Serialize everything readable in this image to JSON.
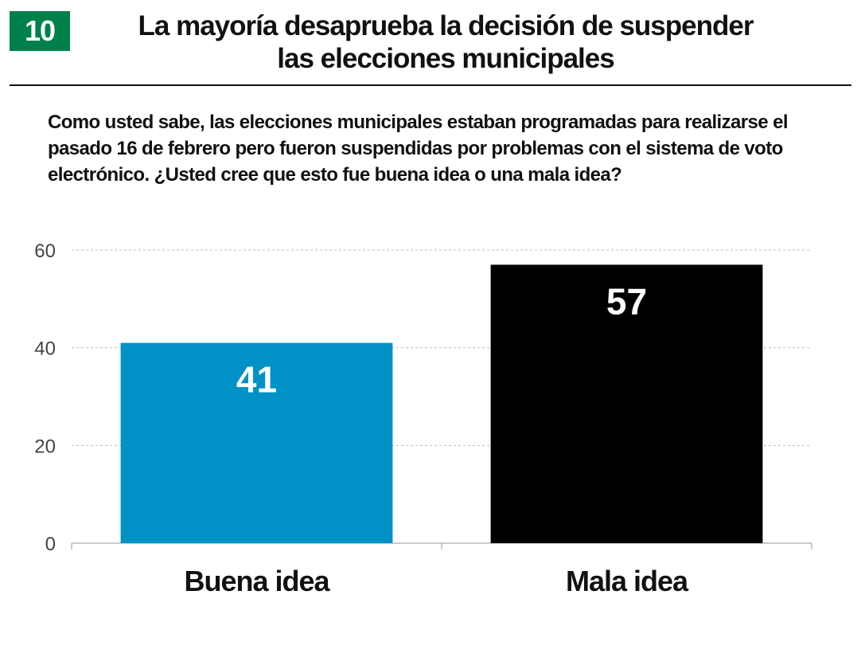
{
  "header": {
    "badge": "10",
    "title_line1": "La mayoría desaprueba la decisión de suspender",
    "title_line2": "las elecciones municipales",
    "question": "Como usted sabe, las elecciones municipales estaban programadas para realizarse el pasado 16 de febrero pero fueron suspendidas por problemas con el sistema de voto electrónico. ¿Usted cree que esto fue buena idea o una mala idea?"
  },
  "colors": {
    "badge": "#00804a",
    "buena": "#0092c6",
    "mala": "#000000"
  },
  "chart_data": {
    "type": "bar",
    "categories": [
      "Buena idea",
      "Mala idea"
    ],
    "values": [
      41,
      57
    ],
    "data_labels": [
      "41",
      "57"
    ],
    "bar_colors": [
      "#0092c6",
      "#000000"
    ],
    "yticks": [
      "0",
      "20",
      "40",
      "60"
    ],
    "ylim": [
      0,
      60
    ],
    "grid": true,
    "title": "",
    "xlabel": "",
    "ylabel": ""
  }
}
